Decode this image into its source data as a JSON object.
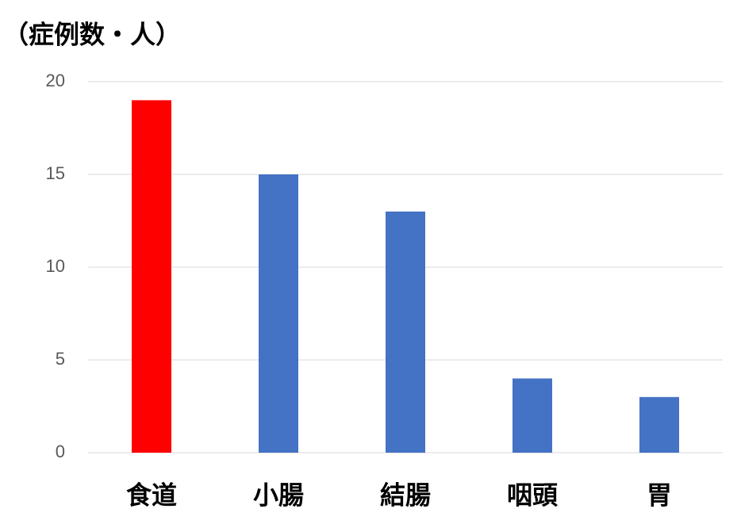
{
  "chart_data": {
    "type": "bar",
    "y_label": "（症例数・人）",
    "categories": [
      "食道",
      "小腸",
      "結腸",
      "咽頭",
      "胃"
    ],
    "values": [
      19,
      15,
      13,
      4,
      3
    ],
    "colors": [
      "#ff0000",
      "#4472c4",
      "#4472c4",
      "#4472c4",
      "#4472c4"
    ],
    "ylim": [
      0,
      20
    ],
    "yticks": [
      0,
      5,
      10,
      15,
      20
    ],
    "grid": true
  }
}
